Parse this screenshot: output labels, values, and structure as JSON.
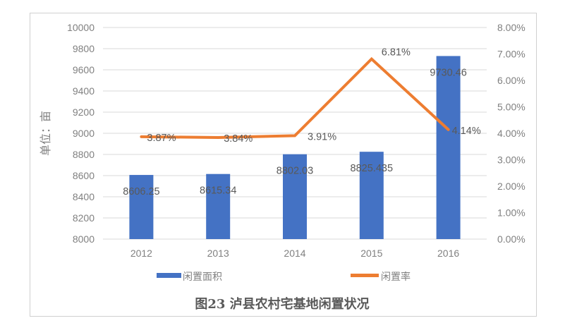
{
  "chart_data": {
    "type": "bar+line",
    "title": "图23  泸县农村宅基地闲置状况",
    "categories": [
      "2012",
      "2013",
      "2014",
      "2015",
      "2016"
    ],
    "series": [
      {
        "name": "闲置面积",
        "type": "bar",
        "axis": "left",
        "color": "#4472C4",
        "values": [
          8606.25,
          8615.34,
          8802.03,
          8825.435,
          9730.46
        ],
        "labels": [
          "8606.25",
          "8615.34",
          "8802.03",
          "8825.435",
          "9730.46"
        ]
      },
      {
        "name": "闲置率",
        "type": "line",
        "axis": "right",
        "color": "#ED7D31",
        "values": [
          3.87,
          3.84,
          3.91,
          6.81,
          4.14
        ],
        "labels": [
          "3.87%",
          "3.84%",
          "3.91%",
          "6.81%",
          "4.14%"
        ]
      }
    ],
    "ylabel": "单位：亩",
    "xlabel": "",
    "ylim": [
      8000,
      10000
    ],
    "y_ticks": [
      "10000",
      "9800",
      "9600",
      "9400",
      "9200",
      "9000",
      "8800",
      "8600",
      "8400",
      "8200",
      "8000"
    ],
    "y2lim": [
      0,
      8
    ],
    "y2_ticks": [
      "8.00%",
      "7.00%",
      "6.00%",
      "5.00%",
      "4.00%",
      "3.00%",
      "2.00%",
      "1.00%",
      "0.00%"
    ],
    "grid": true,
    "legend_position": "bottom"
  },
  "legend": {
    "bar_label": "闲置面积",
    "line_label": "闲置率"
  },
  "caption": "图23  泸县农村宅基地闲置状况",
  "ylabel_text": "单位：亩"
}
